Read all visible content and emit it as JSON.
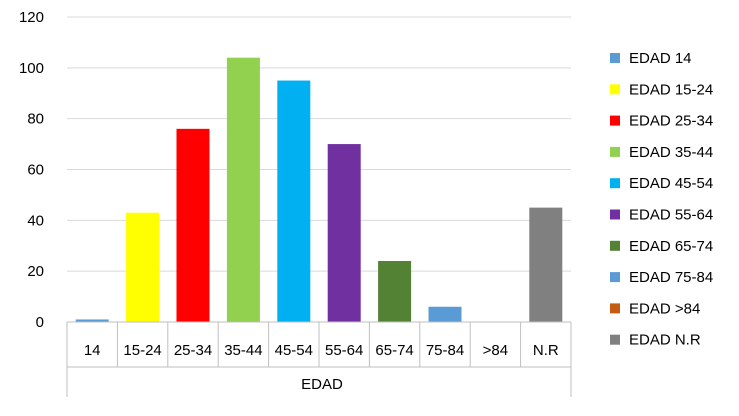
{
  "top_caption_fragment": "",
  "chart_data": {
    "type": "bar",
    "title": "",
    "xlabel": "EDAD",
    "ylabel": "",
    "ylim": [
      0,
      120
    ],
    "yticks": [
      0,
      20,
      40,
      60,
      80,
      100,
      120
    ],
    "grid": true,
    "legend_position": "right",
    "categories": [
      "14",
      "15-24",
      "25-34",
      "35-44",
      "45-54",
      "55-64",
      "65-74",
      "75-84",
      ">84",
      "N.R"
    ],
    "series": [
      {
        "name": "EDAD 14",
        "color": "#5B9BD5",
        "values": [
          1,
          0,
          0,
          0,
          0,
          0,
          0,
          0,
          0,
          0
        ]
      },
      {
        "name": "EDAD 15-24",
        "color": "#FFFF00",
        "values": [
          0,
          43,
          0,
          0,
          0,
          0,
          0,
          0,
          0,
          0
        ]
      },
      {
        "name": "EDAD 25-34",
        "color": "#FF0000",
        "values": [
          0,
          0,
          76,
          0,
          0,
          0,
          0,
          0,
          0,
          0
        ]
      },
      {
        "name": "EDAD 35-44",
        "color": "#92D050",
        "values": [
          0,
          0,
          0,
          104,
          0,
          0,
          0,
          0,
          0,
          0
        ]
      },
      {
        "name": "EDAD 45-54",
        "color": "#00B0F0",
        "values": [
          0,
          0,
          0,
          0,
          95,
          0,
          0,
          0,
          0,
          0
        ]
      },
      {
        "name": "EDAD 55-64",
        "color": "#7030A0",
        "values": [
          0,
          0,
          0,
          0,
          0,
          70,
          0,
          0,
          0,
          0
        ]
      },
      {
        "name": "EDAD 65-74",
        "color": "#548235",
        "values": [
          0,
          0,
          0,
          0,
          0,
          0,
          24,
          0,
          0,
          0
        ]
      },
      {
        "name": "EDAD 75-84",
        "color": "#5B9BD5",
        "values": [
          0,
          0,
          0,
          0,
          0,
          0,
          0,
          6,
          0,
          0
        ]
      },
      {
        "name": "EDAD >84",
        "color": "#C55A11",
        "values": [
          0,
          0,
          0,
          0,
          0,
          0,
          0,
          0,
          0,
          0
        ]
      },
      {
        "name": "EDAD N.R",
        "color": "#808080",
        "values": [
          0,
          0,
          0,
          0,
          0,
          0,
          0,
          0,
          0,
          45
        ]
      }
    ]
  }
}
